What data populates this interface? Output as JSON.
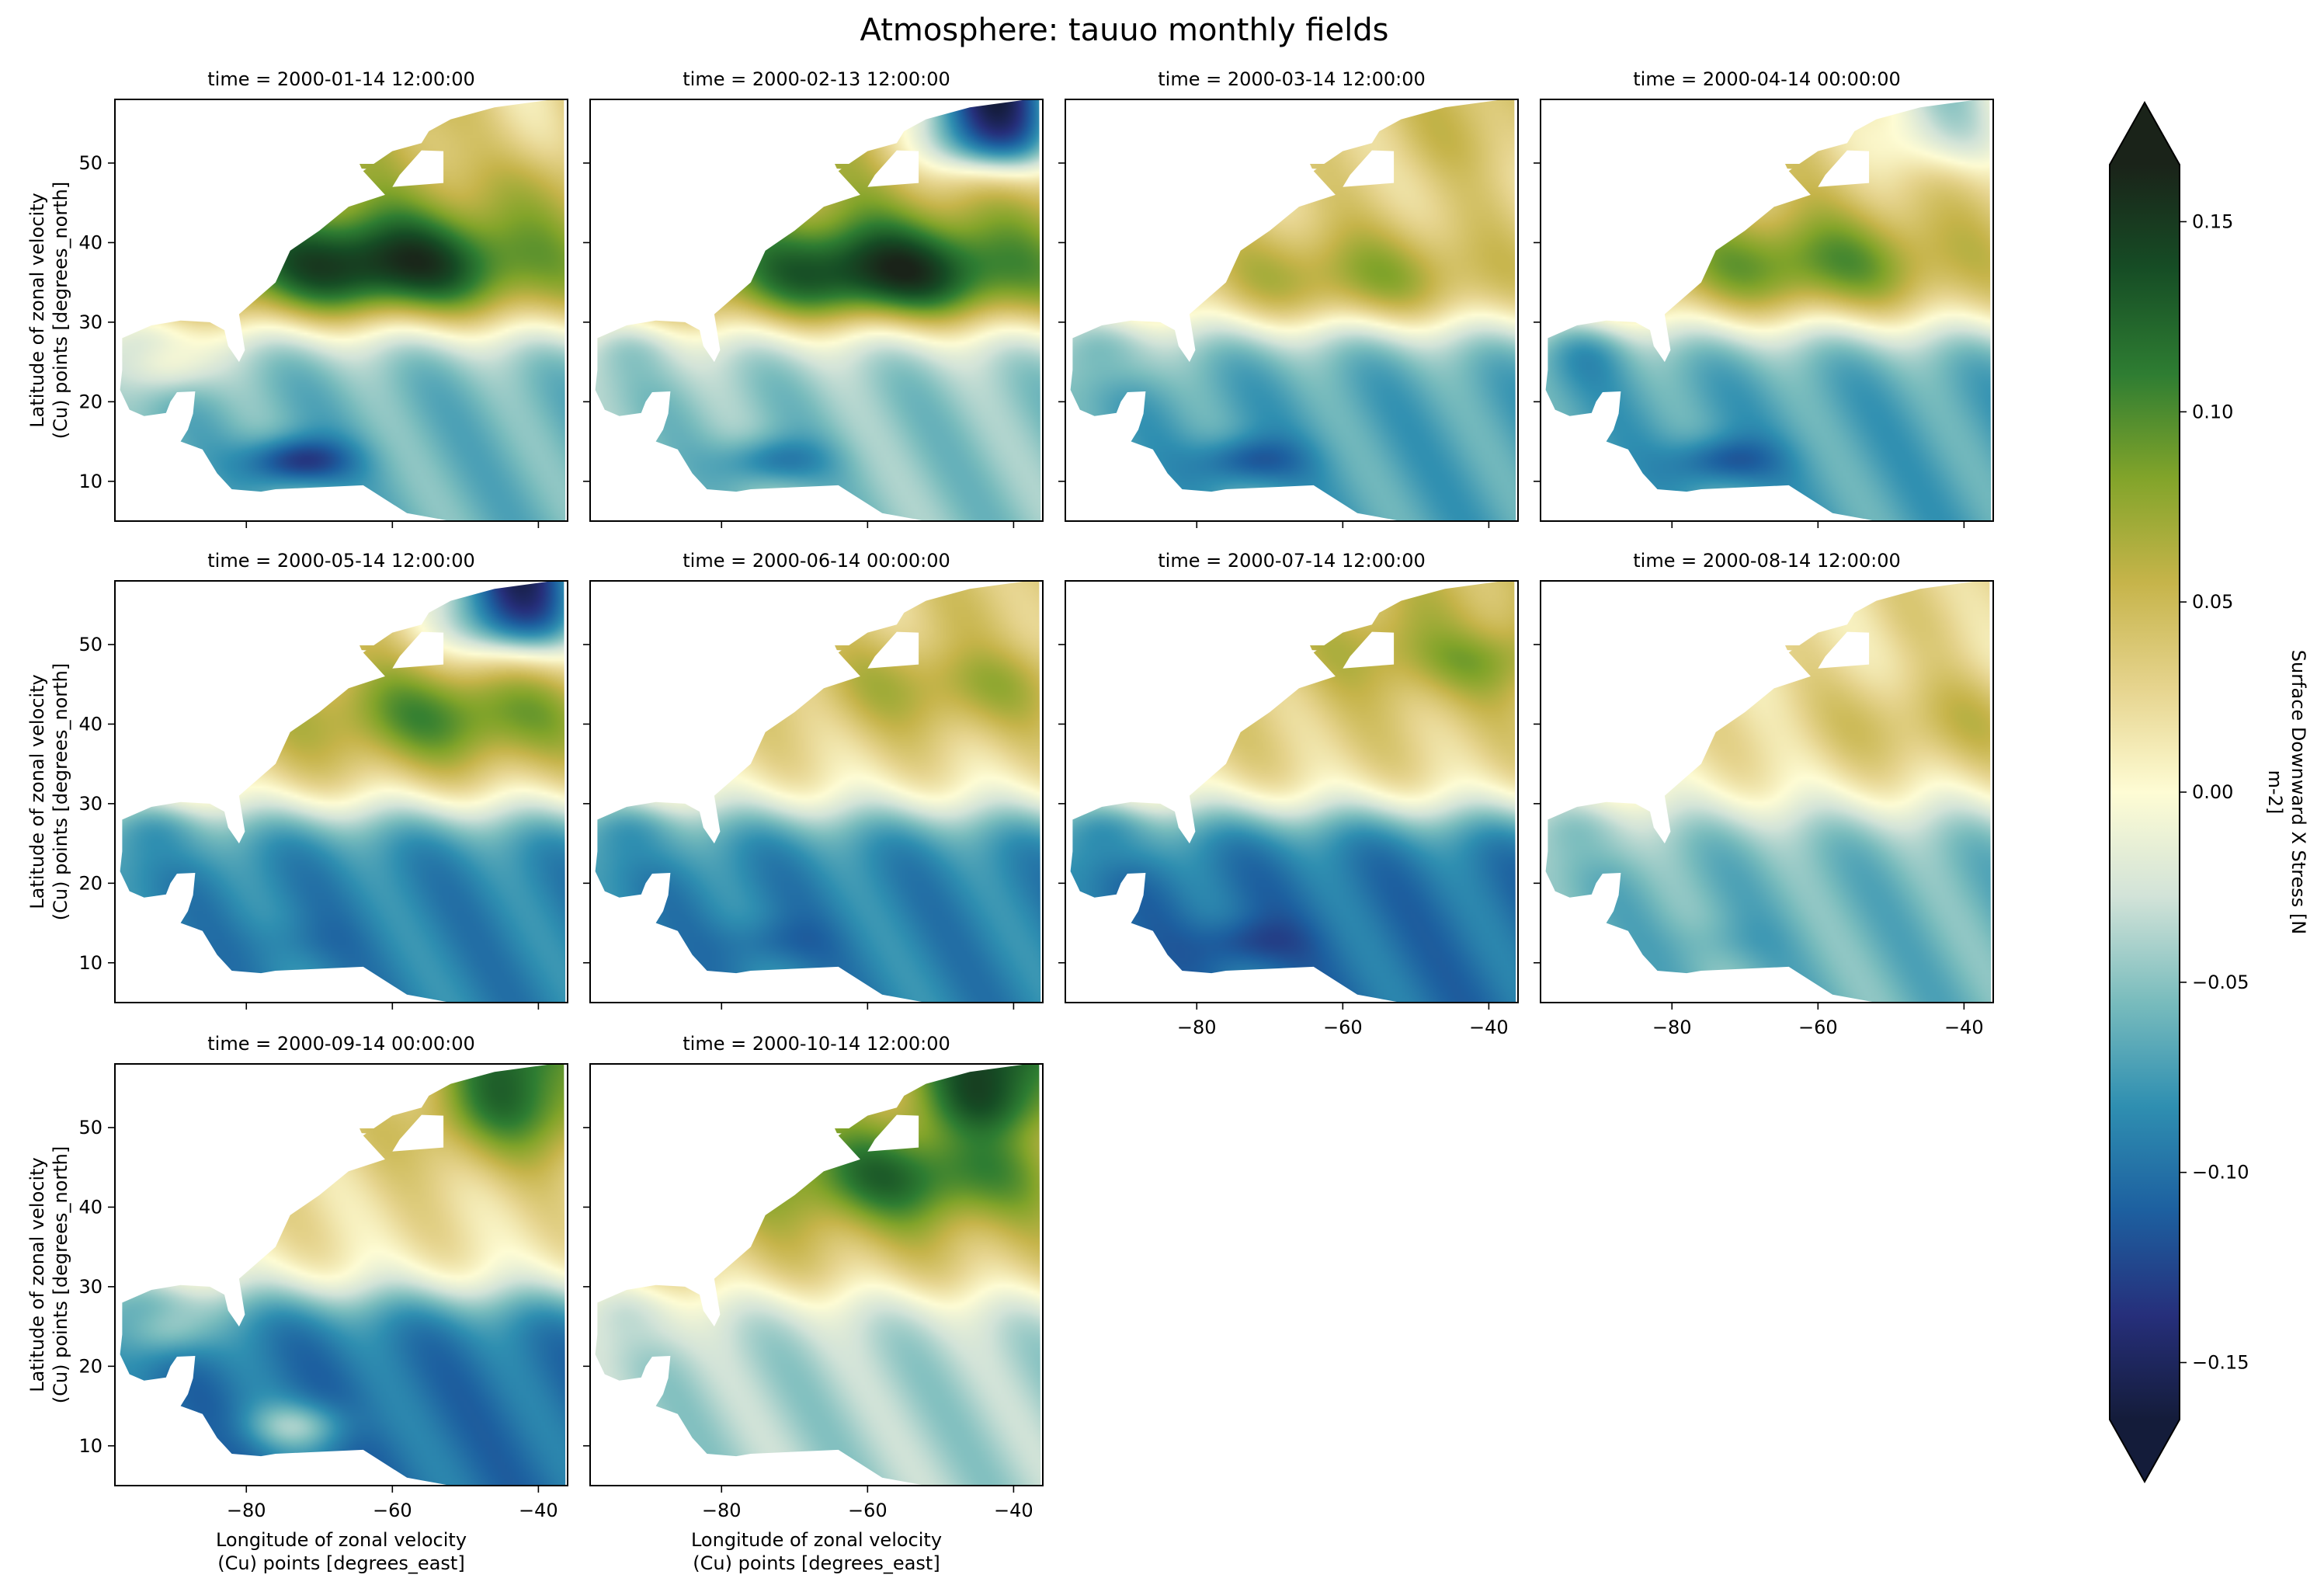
{
  "figure": {
    "title": "Atmosphere: tauuo monthly fields"
  },
  "chart_data": {
    "type": "heatmap",
    "title": "Atmosphere: tauuo monthly fields",
    "variable": "tauuo",
    "xlabel": "Longitude of zonal velocity\n(Cu) points [degrees_east]",
    "ylabel": "Latitude of zonal velocity\n(Cu) points [degrees_north]",
    "xlim": [
      -98,
      -36
    ],
    "ylim": [
      5,
      58
    ],
    "xticks": [
      -80,
      -60,
      -40
    ],
    "xticklabels": [
      "−80",
      "−60",
      "−40"
    ],
    "yticks": [
      10,
      20,
      30,
      40,
      50
    ],
    "yticklabels": [
      "10",
      "20",
      "30",
      "40",
      "50"
    ],
    "colorbar": {
      "label": "Surface Downward X Stress [N m-2]",
      "label_lines": [
        "Surface Downward X Stress [N",
        "m-2]"
      ],
      "vmin": -0.165,
      "vmax": 0.165,
      "extend": "both",
      "ticks": [
        -0.15,
        -0.1,
        -0.05,
        0.0,
        0.05,
        0.1,
        0.15
      ],
      "ticklabels": [
        "−0.15",
        "−0.10",
        "−0.05",
        "0.00",
        "0.05",
        "0.10",
        "0.15"
      ],
      "colormap": "delta (cmocean)",
      "colors": [
        "#141c3a",
        "#262f7b",
        "#1d60a0",
        "#2f8fb1",
        "#79bcbd",
        "#d2e3d8",
        "#fefcd4",
        "#e6d48e",
        "#c6b44a",
        "#82a42a",
        "#2e7d32",
        "#164d25",
        "#1a2319"
      ]
    },
    "panels": [
      {
        "title": "time = 2000-01-14 12:00:00",
        "regimes": {
          "north_band": 0.02,
          "westerlies": 0.165,
          "westerly_center": [
            -62,
            37
          ],
          "trades": -0.06,
          "caribbean": -0.14,
          "gulf": 0.01
        }
      },
      {
        "title": "time = 2000-02-13 12:00:00",
        "regimes": {
          "north_band": -0.16,
          "westerlies": 0.165,
          "westerly_center": [
            -58,
            36
          ],
          "trades": -0.05,
          "caribbean": -0.1,
          "gulf": -0.04
        }
      },
      {
        "title": "time = 2000-03-14 12:00:00",
        "regimes": {
          "north_band": 0.05,
          "westerlies": 0.08,
          "westerly_center": [
            -58,
            35
          ],
          "trades": -0.07,
          "caribbean": -0.12,
          "gulf": -0.04
        }
      },
      {
        "title": "time = 2000-04-14 00:00:00",
        "regimes": {
          "north_band": -0.04,
          "westerlies": 0.1,
          "westerly_center": [
            -62,
            37
          ],
          "trades": -0.07,
          "caribbean": -0.12,
          "gulf": -0.08
        }
      },
      {
        "title": "time = 2000-05-14 12:00:00",
        "regimes": {
          "north_band": -0.15,
          "westerlies": 0.1,
          "westerly_center": [
            -52,
            41
          ],
          "trades": -0.09,
          "caribbean": -0.1,
          "gulf": -0.07
        }
      },
      {
        "title": "time = 2000-06-14 00:00:00",
        "regimes": {
          "north_band": 0.04,
          "westerlies": 0.07,
          "westerly_center": [
            -48,
            45
          ],
          "trades": -0.09,
          "caribbean": -0.11,
          "gulf": -0.07
        }
      },
      {
        "title": "time = 2000-07-14 12:00:00",
        "regimes": {
          "north_band": 0.05,
          "westerlies": 0.09,
          "westerly_center": [
            -42,
            50
          ],
          "trades": -0.1,
          "caribbean": -0.13,
          "gulf": -0.07
        }
      },
      {
        "title": "time = 2000-08-14 12:00:00",
        "regimes": {
          "north_band": 0.03,
          "westerlies": 0.05,
          "westerly_center": [
            -42,
            40
          ],
          "trades": -0.06,
          "caribbean": -0.07,
          "gulf": -0.04
        }
      },
      {
        "title": "time = 2000-09-14 00:00:00",
        "regimes": {
          "north_band": 0.13,
          "westerlies": 0.06,
          "westerly_center": [
            -42,
            50
          ],
          "trades": -0.1,
          "caribbean": -0.05,
          "gulf": -0.03
        }
      },
      {
        "title": "time = 2000-10-14 12:00:00",
        "regimes": {
          "north_band": 0.15,
          "westerlies": 0.12,
          "westerly_center": [
            -55,
            44
          ],
          "trades": -0.04,
          "caribbean": -0.04,
          "gulf": -0.02
        }
      }
    ]
  }
}
